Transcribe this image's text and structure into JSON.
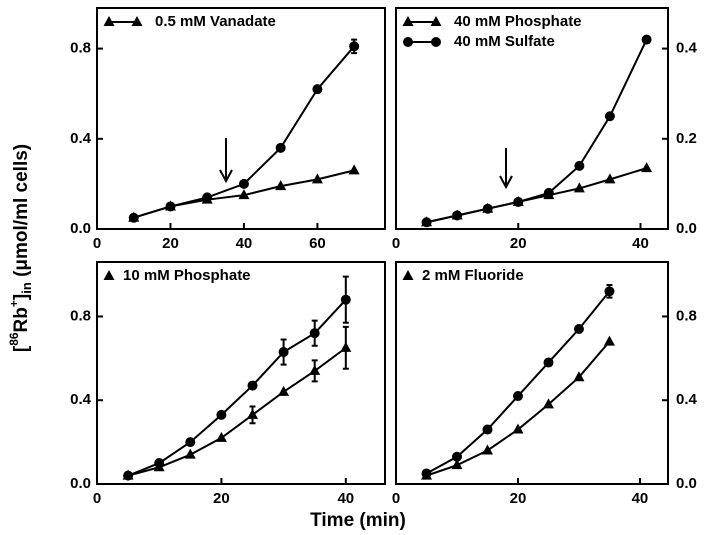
{
  "y_label_parts": [
    "[",
    "86",
    "Rb",
    "+",
    "]",
    "in",
    " (μmol/ml cells)"
  ],
  "x_label": "Time (min)",
  "chart_data": [
    {
      "type": "line",
      "xlim": [
        0,
        78.4
      ],
      "ylim": [
        0,
        0.98
      ],
      "xticks": [
        0,
        20,
        40,
        60
      ],
      "yticks": [
        {
          "value": 0,
          "label": "0.0"
        },
        {
          "value": 0.4,
          "label": "0.4"
        },
        {
          "value": 0.8,
          "label": "0.8"
        }
      ],
      "y_axis_side": "left",
      "series": [
        {
          "name": "0.5 mM Vanadate",
          "marker": "triangle",
          "color": "#000000",
          "x": [
            10,
            20,
            30,
            40,
            50,
            60,
            70
          ],
          "values": [
            0.05,
            0.1,
            0.13,
            0.15,
            0.19,
            0.22,
            0.26
          ]
        },
        {
          "marker": "circle",
          "color": "#000000",
          "x": [
            10,
            20,
            30,
            40,
            50,
            60,
            70
          ],
          "values": [
            0.05,
            0.1,
            0.14,
            0.2,
            0.36,
            0.62,
            0.81
          ],
          "errors": [
            null,
            null,
            null,
            null,
            null,
            null,
            0.03
          ]
        }
      ]
    },
    {
      "type": "line",
      "xlim": [
        0,
        44.5
      ],
      "ylim": [
        0,
        0.49
      ],
      "xticks": [
        0,
        20,
        40
      ],
      "yticks": [
        {
          "value": 0,
          "label": "0.0"
        },
        0.2,
        0.4
      ],
      "y_axis_side": "right",
      "series": [
        {
          "name": "40 mM Phosphate",
          "marker": "triangle",
          "color": "#000000",
          "x": [
            5,
            10,
            15,
            20,
            25,
            30,
            35,
            41
          ],
          "values": [
            0.015,
            0.03,
            0.045,
            0.06,
            0.075,
            0.09,
            0.11,
            0.135
          ]
        },
        {
          "name": "40 mM Sulfate",
          "marker": "circle",
          "color": "#000000",
          "x": [
            5,
            10,
            15,
            20,
            25,
            30,
            35,
            41
          ],
          "values": [
            0.015,
            0.03,
            0.045,
            0.06,
            0.08,
            0.14,
            0.25,
            0.42
          ]
        }
      ]
    },
    {
      "type": "line",
      "xlim": [
        0,
        46.3
      ],
      "ylim": [
        0,
        1.06
      ],
      "xticks": [
        0,
        20,
        40
      ],
      "yticks": [
        {
          "value": 0,
          "label": "0.0"
        },
        {
          "value": 0.4,
          "label": "0.4"
        },
        {
          "value": 0.8,
          "label": "0.8"
        }
      ],
      "y_axis_side": "left",
      "series": [
        {
          "name": "10 mM Phosphate",
          "marker": "triangle",
          "color": "#000000",
          "x": [
            5,
            10,
            15,
            20,
            25,
            30,
            35,
            40
          ],
          "values": [
            0.04,
            0.08,
            0.14,
            0.22,
            0.33,
            0.44,
            0.54,
            0.65
          ],
          "errors": [
            null,
            null,
            null,
            null,
            0.04,
            null,
            0.05,
            0.1
          ]
        },
        {
          "marker": "circle",
          "color": "#000000",
          "x": [
            5,
            10,
            15,
            20,
            25,
            30,
            35,
            40
          ],
          "values": [
            0.04,
            0.1,
            0.2,
            0.33,
            0.47,
            0.63,
            0.72,
            0.88
          ],
          "errors": [
            null,
            null,
            null,
            null,
            null,
            0.06,
            0.06,
            0.11
          ]
        }
      ]
    },
    {
      "type": "line",
      "xlim": [
        0,
        44.6
      ],
      "ylim": [
        0,
        1.06
      ],
      "xticks": [
        0,
        20,
        40
      ],
      "yticks": [
        {
          "value": 0,
          "label": "0.0"
        },
        {
          "value": 0.4,
          "label": "0.4"
        },
        {
          "value": 0.8,
          "label": "0.8"
        }
      ],
      "y_axis_side": "right",
      "series": [
        {
          "name": "2 mM Fluoride",
          "marker": "triangle",
          "color": "#000000",
          "x": [
            5,
            10,
            15,
            20,
            25,
            30,
            35
          ],
          "values": [
            0.04,
            0.09,
            0.16,
            0.26,
            0.38,
            0.51,
            0.68
          ]
        },
        {
          "marker": "circle",
          "color": "#000000",
          "x": [
            5,
            10,
            15,
            20,
            25,
            30,
            35
          ],
          "values": [
            0.05,
            0.13,
            0.26,
            0.42,
            0.58,
            0.74,
            0.92
          ],
          "errors": [
            null,
            null,
            null,
            null,
            null,
            null,
            0.03
          ]
        }
      ]
    }
  ]
}
